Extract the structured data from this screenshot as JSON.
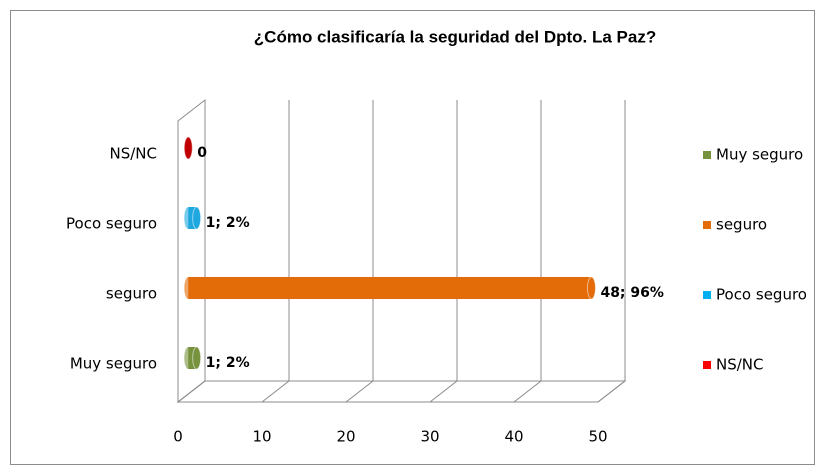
{
  "chart_data": {
    "type": "bar",
    "orientation": "horizontal",
    "style": "3d-cylinder",
    "title": "¿Cómo clasificaría la seguridad del Dpto. La Paz?",
    "categories": [
      "Muy seguro",
      "seguro",
      "Poco seguro",
      "NS/NC"
    ],
    "values": [
      1,
      48,
      1,
      0
    ],
    "value_labels": [
      "1; 2%",
      "48; 96%",
      "1; 2%",
      "0"
    ],
    "colors": [
      "#76923c",
      "#e36c09",
      "#1fa8e0",
      "#c00000"
    ],
    "legend_colors": [
      "#76923c",
      "#e36c09",
      "#00b0f0",
      "#ff0000"
    ],
    "xlim": [
      0,
      50
    ],
    "xticks": [
      0,
      10,
      20,
      30,
      40,
      50
    ],
    "grid": true,
    "legend": "right"
  }
}
